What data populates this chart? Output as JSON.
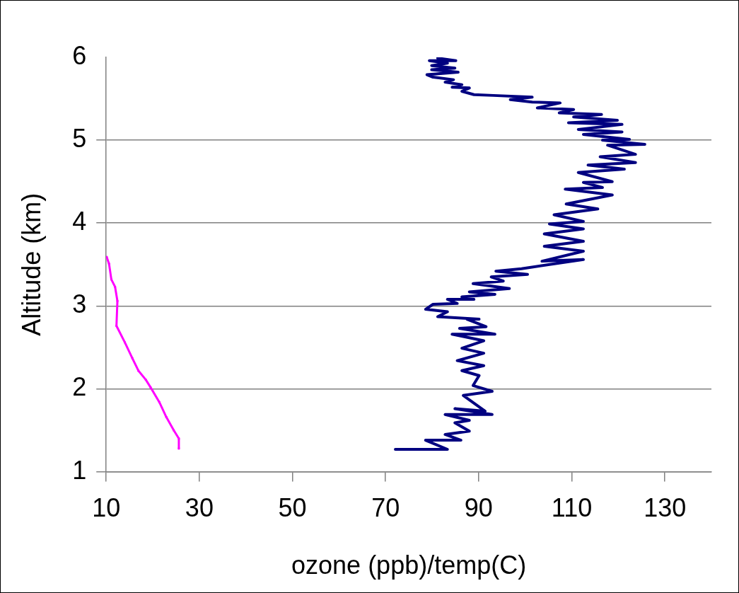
{
  "chart_data": {
    "type": "line",
    "xlabel": "ozone (ppb)/temp(C)",
    "ylabel": "Altitude (km)",
    "xlim": [
      10,
      140
    ],
    "xticks": [
      10,
      30,
      50,
      70,
      90,
      110,
      130
    ],
    "ylim": [
      1,
      6
    ],
    "yticks": [
      1,
      2,
      3,
      4,
      5,
      6
    ],
    "grid": "y",
    "legend": false,
    "line_style": "solid",
    "series": [
      {
        "color": "#ff00ff",
        "marker": "square",
        "x": [
          10.1,
          10.6,
          11.1,
          11.9,
          12.4,
          12.2,
          14.0,
          15.6,
          16.9,
          18.5,
          19.5,
          21.4,
          22.9,
          24.5,
          25.6,
          25.6
        ],
        "values": [
          3.59,
          3.51,
          3.32,
          3.23,
          3.06,
          2.76,
          2.56,
          2.37,
          2.22,
          2.11,
          2.02,
          1.84,
          1.66,
          1.5,
          1.4,
          1.28
        ]
      },
      {
        "color": "#000080",
        "marker": "none",
        "x": [
          72.1,
          83.3,
          78.6,
          86.2,
          82.8,
          88,
          84.9,
          88,
          82.8,
          92.9,
          84.9,
          91.4,
          86.7,
          92.9,
          88.8,
          90.1,
          86.4,
          91.1,
          85.4,
          91.1,
          86.4,
          91.1,
          84.3,
          93.5,
          85.9,
          91.6,
          87.5,
          90.1,
          81.2,
          83.3,
          78.6,
          80.2,
          85.4,
          83.3,
          89,
          86.4,
          93.5,
          88,
          96.6,
          88.8,
          95.3,
          92.7,
          100.5,
          93.7,
          99.2,
          112.5,
          103.6,
          112.5,
          104.1,
          112.5,
          104.1,
          112.5,
          105.2,
          112.5,
          106.2,
          115.6,
          108.8,
          118.7,
          108.6,
          116.6,
          112.5,
          118.7,
          111.4,
          121.3,
          113.5,
          123.7,
          116.1,
          123.7,
          117.7,
          125.7,
          116.6,
          122.4,
          112.5,
          120.8,
          111.4,
          120.8,
          109.3,
          119.8,
          110.4,
          116.4,
          107.3,
          110.4,
          102.6,
          107.5,
          101.5,
          96.8,
          101.5,
          93.2,
          89,
          86.4,
          88,
          84.3,
          86.4,
          82.8,
          84.6,
          80.2,
          78.9,
          85.6,
          79.9,
          84.9,
          79.9,
          83.3,
          79.4,
          85.1,
          81.2
        ],
        "values": [
          1.27,
          1.27,
          1.38,
          1.38,
          1.45,
          1.49,
          1.59,
          1.62,
          1.69,
          1.69,
          1.76,
          1.73,
          1.92,
          1.97,
          2.04,
          2.16,
          2.22,
          2.28,
          2.34,
          2.43,
          2.49,
          2.58,
          2.66,
          2.66,
          2.73,
          2.75,
          2.84,
          2.84,
          2.87,
          2.93,
          2.96,
          3.02,
          3.03,
          3.08,
          3.08,
          3.11,
          3.14,
          3.17,
          3.21,
          3.27,
          3.3,
          3.35,
          3.38,
          3.42,
          3.45,
          3.56,
          3.54,
          3.66,
          3.72,
          3.78,
          3.87,
          3.93,
          3.99,
          4.02,
          4.1,
          4.17,
          4.23,
          4.34,
          4.41,
          4.43,
          4.49,
          4.5,
          4.61,
          4.65,
          4.7,
          4.73,
          4.8,
          4.83,
          4.94,
          4.95,
          5.0,
          5.01,
          5.07,
          5.1,
          5.13,
          5.19,
          5.21,
          5.24,
          5.28,
          5.31,
          5.33,
          5.37,
          5.39,
          5.45,
          5.46,
          5.49,
          5.52,
          5.54,
          5.55,
          5.59,
          5.63,
          5.64,
          5.67,
          5.7,
          5.73,
          5.76,
          5.79,
          5.82,
          5.85,
          5.87,
          5.9,
          5.93,
          5.96,
          5.96,
          5.99
        ]
      }
    ]
  }
}
